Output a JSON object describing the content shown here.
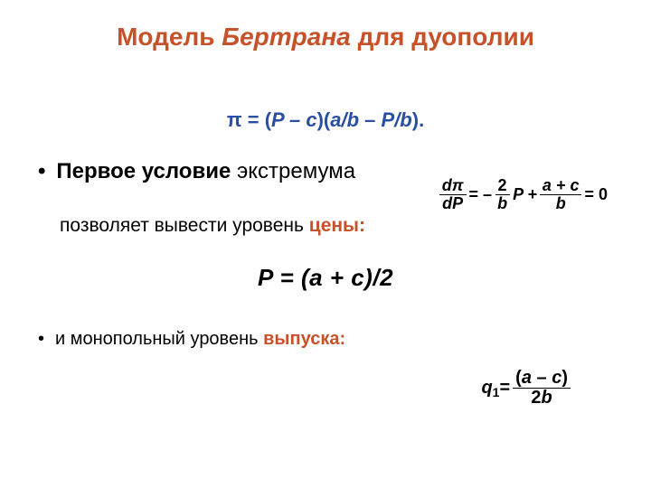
{
  "colors": {
    "title": "#c7522a",
    "formula_blue": "#2a4ea0",
    "black": "#000000",
    "highlight": "#c7522a"
  },
  "fontsizes": {
    "title": 28,
    "profit_eq": 22,
    "bullet_main": 24,
    "derivative": 18,
    "allow_text": 21,
    "price_eq": 26,
    "output_text": 20,
    "qty_eq": 20
  },
  "title": {
    "pre": "Модель ",
    "italic": "Бертрана",
    "post": " для дуополии"
  },
  "profit_eq": {
    "pi": "π",
    "eq": " = (",
    "P": "P",
    "minus_c": " – c",
    "close1": ")(",
    "ab": "a/b",
    "minus": " – ",
    "Pb": "P/b",
    "close2": ")."
  },
  "first_condition": {
    "bold": "Первое условие",
    "rest": " экстремума"
  },
  "derivative": {
    "dpi_num": "dπ",
    "dpi_den": "dP",
    "eq_minus": " = – ",
    "two_num": "2",
    "b_den": "b",
    "P_plus": " P + ",
    "ac_num": "a + c",
    "b_den2": "b",
    "eq_zero": " = 0"
  },
  "allow": {
    "pre": "позволяет вывести уровень ",
    "highlight": "цены:"
  },
  "price_eq": "P = (a + c)/2",
  "output": {
    "pre": "и монопольный уровень ",
    "highlight": "выпуска:"
  },
  "qty_eq": {
    "q": "q",
    "sub1": "1",
    "eq": " = ",
    "num_open": "(",
    "num_a": "a",
    "num_minus": " – ",
    "num_c": "c",
    "num_close": ")",
    "den_2": "2",
    "den_b": "b"
  }
}
